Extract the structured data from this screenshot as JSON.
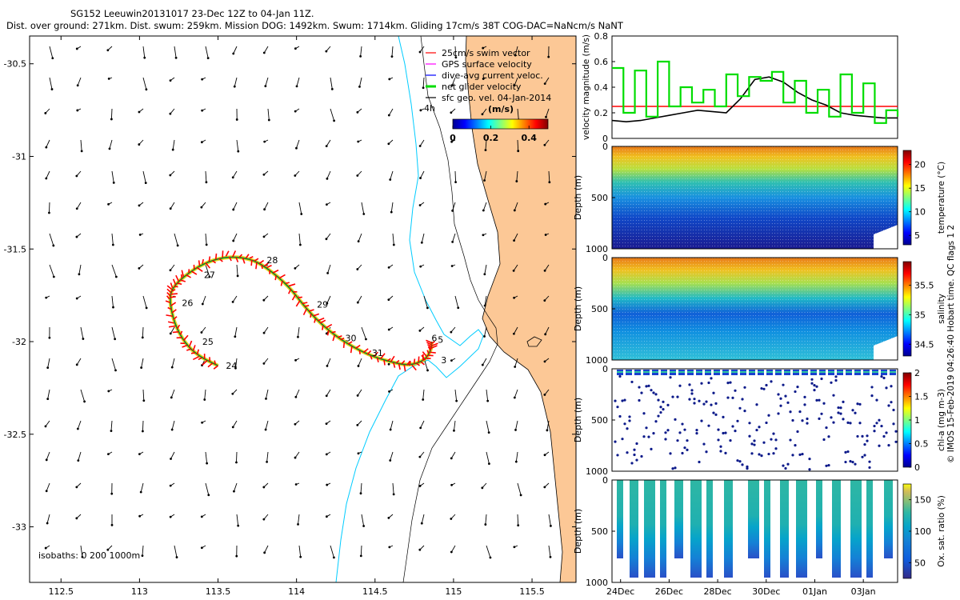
{
  "header": {
    "line1": "SG152 Leeuwin20131017 23-Dec 12Z to 04-Jan 11Z.",
    "line2": "Dist. over ground: 271km. Dist. swum: 259km. Mission DOG: 1492km. Swum: 1714km. Gliding 17cm/s 38T COG-DAC=NaNcm/s NaNT"
  },
  "credit": "© IMOS 15-Feb-2019 04:26:40 Hobart time. QC flags 1  2",
  "chart_data": [
    {
      "id": "map",
      "type": "map",
      "xlim": [
        112.3,
        115.78
      ],
      "ylim": [
        -33.3,
        -30.35
      ],
      "xticks": [
        "112.5",
        "113",
        "113.5",
        "114",
        "114.5",
        "115",
        "115.5"
      ],
      "xtick_values": [
        112.5,
        113,
        113.5,
        114,
        114.5,
        115,
        115.5
      ],
      "yticks": [
        "-30.5",
        "-31",
        "-31.5",
        "-32",
        "-32.5",
        "-33"
      ],
      "ytick_values": [
        -30.5,
        -31,
        -31.5,
        -32,
        -32.5,
        -33
      ],
      "legend": [
        {
          "label": "25cm/s swim vector",
          "color": "#ff0000"
        },
        {
          "label": "GPS surface velocity",
          "color": "#ff00ff"
        },
        {
          "label": "dive-avg current veloc.",
          "color": "#0000ff"
        },
        {
          "label": "net glider velocity",
          "color": "#00dd00"
        },
        {
          "label": "sfc geo. vel. 04-Jan-2014",
          "color": "#000000"
        }
      ],
      "colorbar_title": "(m/s)",
      "colorbar_ticks": [
        "0",
        "0.2",
        "0.4"
      ],
      "colorbar_values": [
        0,
        0.2,
        0.4
      ],
      "colorbar_range": [
        0,
        0.5
      ],
      "isobaths_label": "isobaths: 0   200  1000m",
      "annotation_4h": "4h",
      "track": [
        {
          "lon": 113.5,
          "lat": -32.13
        },
        {
          "lon": 113.38,
          "lat": -32.08
        },
        {
          "lon": 113.29,
          "lat": -32.01
        },
        {
          "lon": 113.22,
          "lat": -31.9
        },
        {
          "lon": 113.19,
          "lat": -31.77
        },
        {
          "lon": 113.21,
          "lat": -31.71
        },
        {
          "lon": 113.28,
          "lat": -31.65
        },
        {
          "lon": 113.4,
          "lat": -31.58
        },
        {
          "lon": 113.55,
          "lat": -31.54
        },
        {
          "lon": 113.7,
          "lat": -31.55
        },
        {
          "lon": 113.81,
          "lat": -31.6
        },
        {
          "lon": 113.95,
          "lat": -31.7
        },
        {
          "lon": 114.05,
          "lat": -31.81
        },
        {
          "lon": 114.15,
          "lat": -31.9
        },
        {
          "lon": 114.28,
          "lat": -31.99
        },
        {
          "lon": 114.45,
          "lat": -32.07
        },
        {
          "lon": 114.6,
          "lat": -32.11
        },
        {
          "lon": 114.72,
          "lat": -32.13
        },
        {
          "lon": 114.82,
          "lat": -32.1
        },
        {
          "lon": 114.86,
          "lat": -32.04
        },
        {
          "lon": 114.86,
          "lat": -32.0
        }
      ],
      "day_labels": [
        {
          "text": "24",
          "lon": 113.55,
          "lat": -32.13
        },
        {
          "text": "25",
          "lon": 113.4,
          "lat": -32.0
        },
        {
          "text": "26",
          "lon": 113.27,
          "lat": -31.79
        },
        {
          "text": "27",
          "lon": 113.41,
          "lat": -31.64
        },
        {
          "text": "28",
          "lon": 113.81,
          "lat": -31.56
        },
        {
          "text": "29",
          "lon": 114.13,
          "lat": -31.8
        },
        {
          "text": "30",
          "lon": 114.31,
          "lat": -31.98
        },
        {
          "text": "31",
          "lon": 114.48,
          "lat": -32.06
        },
        {
          "text": "3",
          "lon": 114.92,
          "lat": -32.1
        },
        {
          "text": "5",
          "lon": 114.9,
          "lat": -31.99
        },
        {
          "text": "6",
          "lon": 114.86,
          "lat": -31.98
        }
      ]
    },
    {
      "id": "velocity",
      "type": "line",
      "ylabel": "velocity magnitude (m/s)",
      "ylim": [
        0,
        0.8
      ],
      "yticks": [
        "0",
        "0.2",
        "0.4",
        "0.6",
        "0.8"
      ],
      "ytick_values": [
        0,
        0.2,
        0.4,
        0.6,
        0.8
      ],
      "series": [
        {
          "color": "#ff0000",
          "x": [
            0,
            1
          ],
          "values": [
            0.25,
            0.25
          ]
        },
        {
          "color": "#000000",
          "x": [
            0,
            0.05,
            0.1,
            0.15,
            0.2,
            0.25,
            0.3,
            0.35,
            0.4,
            0.45,
            0.5,
            0.55,
            0.6,
            0.65,
            0.7,
            0.75,
            0.8,
            0.85,
            0.9,
            0.95,
            1
          ],
          "values": [
            0.14,
            0.13,
            0.14,
            0.16,
            0.18,
            0.2,
            0.22,
            0.21,
            0.2,
            0.31,
            0.46,
            0.48,
            0.44,
            0.36,
            0.3,
            0.26,
            0.2,
            0.18,
            0.17,
            0.16,
            0.16
          ]
        },
        {
          "color": "#00dd00",
          "x": [
            0,
            0.04,
            0.08,
            0.12,
            0.16,
            0.2,
            0.24,
            0.28,
            0.32,
            0.36,
            0.4,
            0.44,
            0.48,
            0.52,
            0.56,
            0.6,
            0.64,
            0.68,
            0.72,
            0.76,
            0.8,
            0.84,
            0.88,
            0.92,
            0.96,
            1
          ],
          "values": [
            0.55,
            0.2,
            0.53,
            0.17,
            0.6,
            0.25,
            0.4,
            0.28,
            0.38,
            0.25,
            0.5,
            0.33,
            0.48,
            0.45,
            0.52,
            0.28,
            0.45,
            0.2,
            0.38,
            0.17,
            0.5,
            0.2,
            0.43,
            0.12,
            0.22,
            0.17
          ]
        }
      ]
    },
    {
      "id": "temperature",
      "type": "heatmap",
      "ylabel": "Depth (m)",
      "yticks": [
        "0",
        "500",
        "1000"
      ],
      "ytick_values": [
        0,
        500,
        1000
      ],
      "ylim": [
        0,
        1000
      ],
      "colorbar_label": "temperature (°C)",
      "colorbar_range": [
        3,
        23
      ],
      "colorbar_ticks": [
        "5",
        "10",
        "15",
        "20"
      ],
      "colorbar_values": [
        5,
        10,
        15,
        20
      ]
    },
    {
      "id": "salinity",
      "type": "heatmap",
      "ylabel": "Depth (m)",
      "yticks": [
        "0",
        "500",
        "1000"
      ],
      "ytick_values": [
        0,
        500,
        1000
      ],
      "ylim": [
        0,
        1000
      ],
      "colorbar_label": "salinity",
      "colorbar_range": [
        34.3,
        35.9
      ],
      "colorbar_ticks": [
        "34.5",
        "35",
        "35.5"
      ],
      "colorbar_values": [
        34.5,
        35,
        35.5
      ]
    },
    {
      "id": "chla",
      "type": "scatter",
      "ylabel": "Depth (m)",
      "yticks": [
        "0",
        "500",
        "1000"
      ],
      "ytick_values": [
        0,
        500,
        1000
      ],
      "ylim": [
        0,
        1000
      ],
      "colorbar_label": "chl-a (mg m-3)",
      "colorbar_range": [
        0,
        2
      ],
      "colorbar_ticks": [
        "0",
        "0.5",
        "1",
        "1.5",
        "2"
      ],
      "colorbar_values": [
        0,
        0.5,
        1,
        1.5,
        2
      ]
    },
    {
      "id": "oxygen",
      "type": "heatmap",
      "ylabel": "Depth (m)",
      "yticks": [
        "0",
        "500",
        "1000"
      ],
      "ytick_values": [
        0,
        500,
        1000
      ],
      "ylim": [
        0,
        1000
      ],
      "colorbar_label": "Ox. sat. ratio (%)",
      "colorbar_range": [
        25,
        175
      ],
      "colorbar_ticks": [
        "50",
        "100",
        "150"
      ],
      "colorbar_values": [
        50,
        100,
        150
      ],
      "xticks": [
        "24Dec",
        "26Dec",
        "28Dec",
        "30Dec",
        "01Jan",
        "03Jan"
      ],
      "xtick_values": [
        0.03,
        0.2,
        0.37,
        0.54,
        0.71,
        0.88
      ]
    }
  ]
}
